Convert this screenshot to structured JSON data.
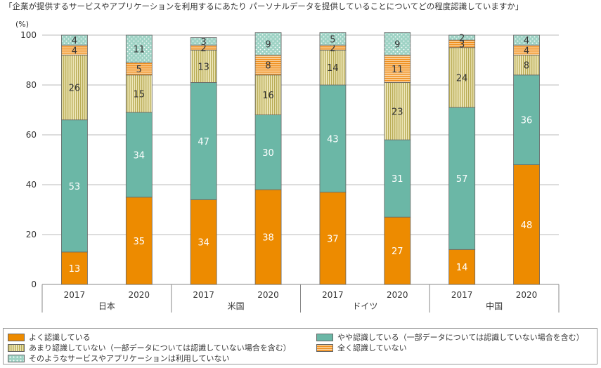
{
  "chart_data": {
    "type": "bar",
    "stacked": true,
    "title": "「企業が提供するサービスやアプリケーションを利用するにあたり パーソナルデータを提供していることについてどの程度認識していますか」",
    "ylabel_unit": "(%)",
    "ylim": [
      0,
      100
    ],
    "yticks": [
      "0",
      "20",
      "40",
      "60",
      "80",
      "100"
    ],
    "grid": true,
    "legend_position": "bottom",
    "groups": [
      "日本",
      "米国",
      "ドイツ",
      "中国"
    ],
    "categories": [
      "2017",
      "2020",
      "2017",
      "2020",
      "2017",
      "2020",
      "2017",
      "2020"
    ],
    "series": [
      {
        "name": "よく認識している",
        "color": "#ed8b00",
        "pattern": "solid",
        "values": [
          13,
          35,
          34,
          38,
          37,
          27,
          14,
          48
        ]
      },
      {
        "name": "やや認識している（一部データについては認識していない場合を含む）",
        "color": "#6bb7a6",
        "pattern": "solid",
        "values": [
          53,
          34,
          47,
          30,
          43,
          31,
          57,
          36
        ]
      },
      {
        "name": "あまり認識していない（一部データについては認識していない場合を含む）",
        "color": "#d8cd86",
        "pattern": "vstripe",
        "values": [
          26,
          15,
          13,
          16,
          14,
          23,
          24,
          8
        ]
      },
      {
        "name": "全く認識していない",
        "color": "#f6a54a",
        "pattern": "hstripe",
        "values": [
          4,
          5,
          2,
          8,
          2,
          11,
          3,
          4
        ]
      },
      {
        "name": "そのようなサービスやアプリケーションは利用していない",
        "color": "#9fd3c5",
        "pattern": "dots",
        "values": [
          4,
          11,
          3,
          9,
          5,
          9,
          2,
          4
        ]
      }
    ]
  }
}
